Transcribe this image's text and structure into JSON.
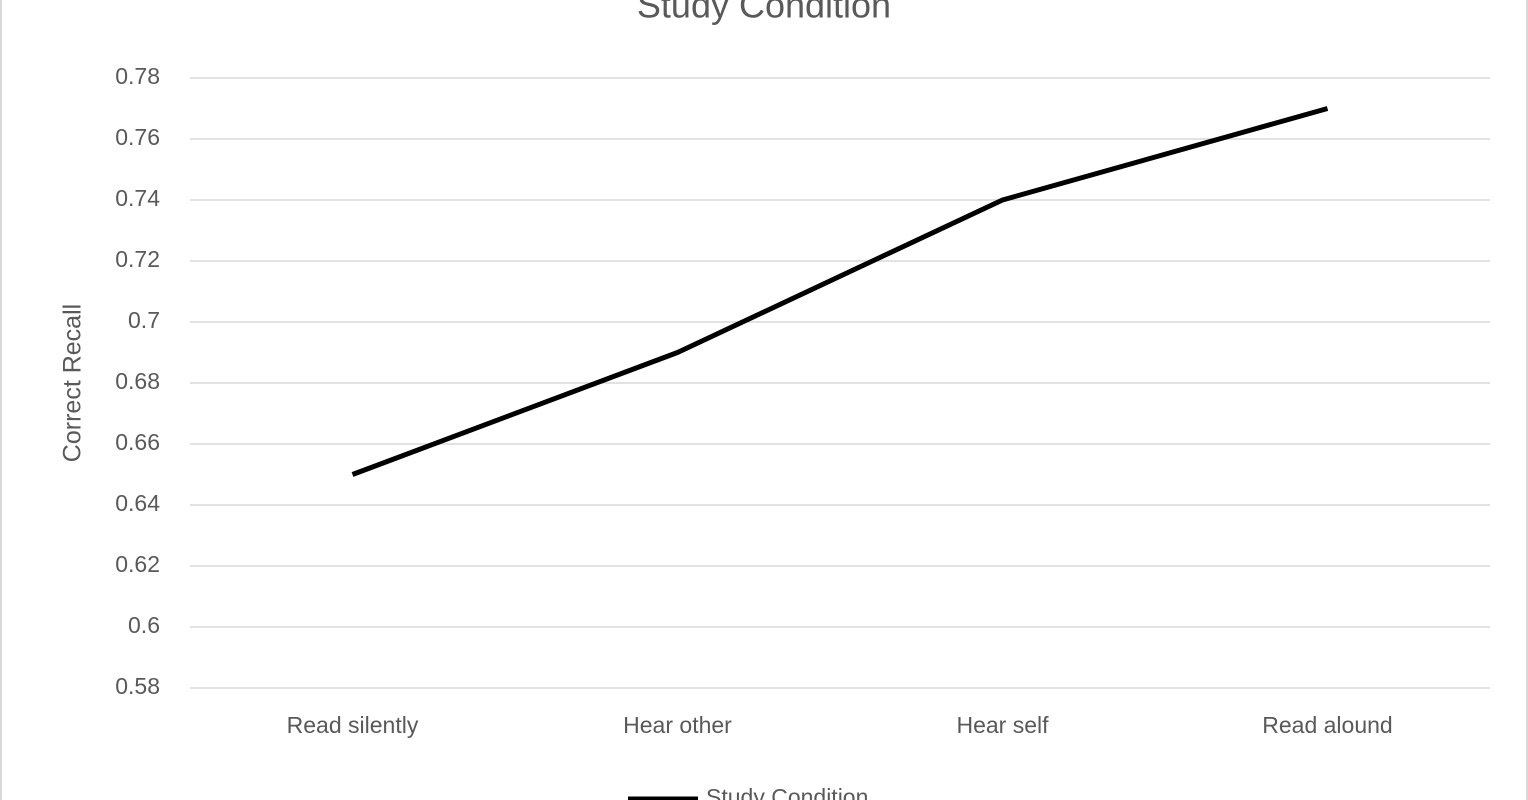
{
  "chart_data": {
    "type": "line",
    "title": "Study Condition",
    "y_label": "Correct Recall",
    "categories": [
      "Read silently",
      "Hear other",
      "Hear self",
      "Read alound"
    ],
    "series": [
      {
        "name": "Study Condition",
        "color": "#000000",
        "values": [
          0.65,
          0.69,
          0.74,
          0.77
        ]
      }
    ],
    "ylim": [
      0.58,
      0.78
    ],
    "yticks": [
      0.58,
      0.6,
      0.62,
      0.64,
      0.66,
      0.68,
      0.7,
      0.72,
      0.74,
      0.76,
      0.78
    ],
    "grid": true,
    "legend": "bottom"
  }
}
